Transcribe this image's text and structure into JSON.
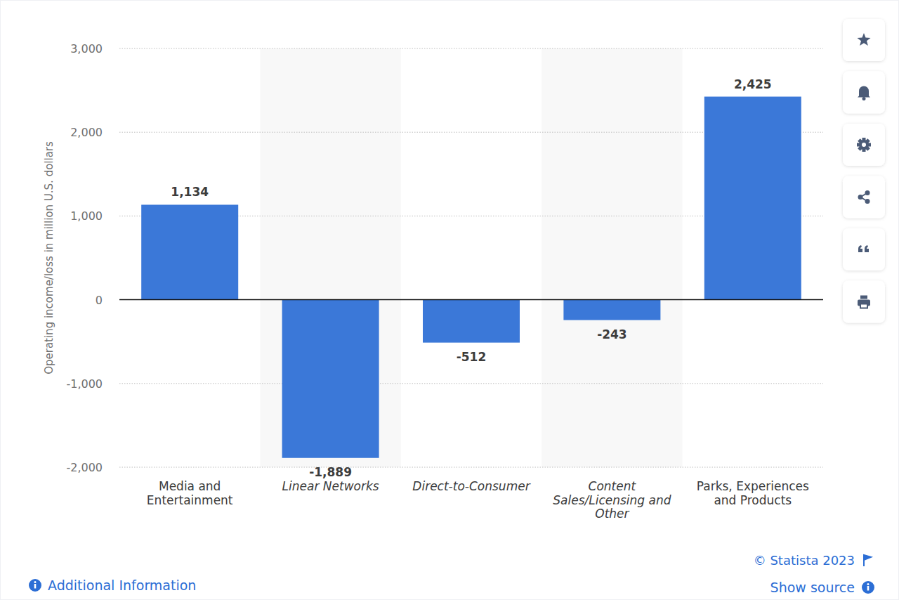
{
  "chart_data": {
    "type": "bar",
    "y_label": "Operating income/loss in million U.S. dollars",
    "categories": [
      "Media and Entertainment",
      "Linear Networks",
      "Direct-to-Consumer",
      "Content Sales/Licensing and Other",
      "Parks, Experiences and Products"
    ],
    "values": [
      1134,
      -1889,
      -512,
      -243,
      2425
    ],
    "value_labels": [
      "1,134",
      "-1,889",
      "-512",
      "-243",
      "2,425"
    ],
    "color": "#3b78d8",
    "ylim": [
      -2000,
      3000
    ],
    "yticks": [
      {
        "value": -2000,
        "label": "-2,000"
      },
      {
        "value": -1000,
        "label": "-1,000"
      },
      0,
      {
        "value": 1000,
        "label": "1,000"
      },
      {
        "value": 2000,
        "label": "2,000"
      },
      {
        "value": 3000,
        "label": "3,000"
      }
    ],
    "grid": true,
    "data_labels": true,
    "annotations": [
      "© Statista 2023",
      "Additional Information",
      "Show source"
    ]
  }
}
